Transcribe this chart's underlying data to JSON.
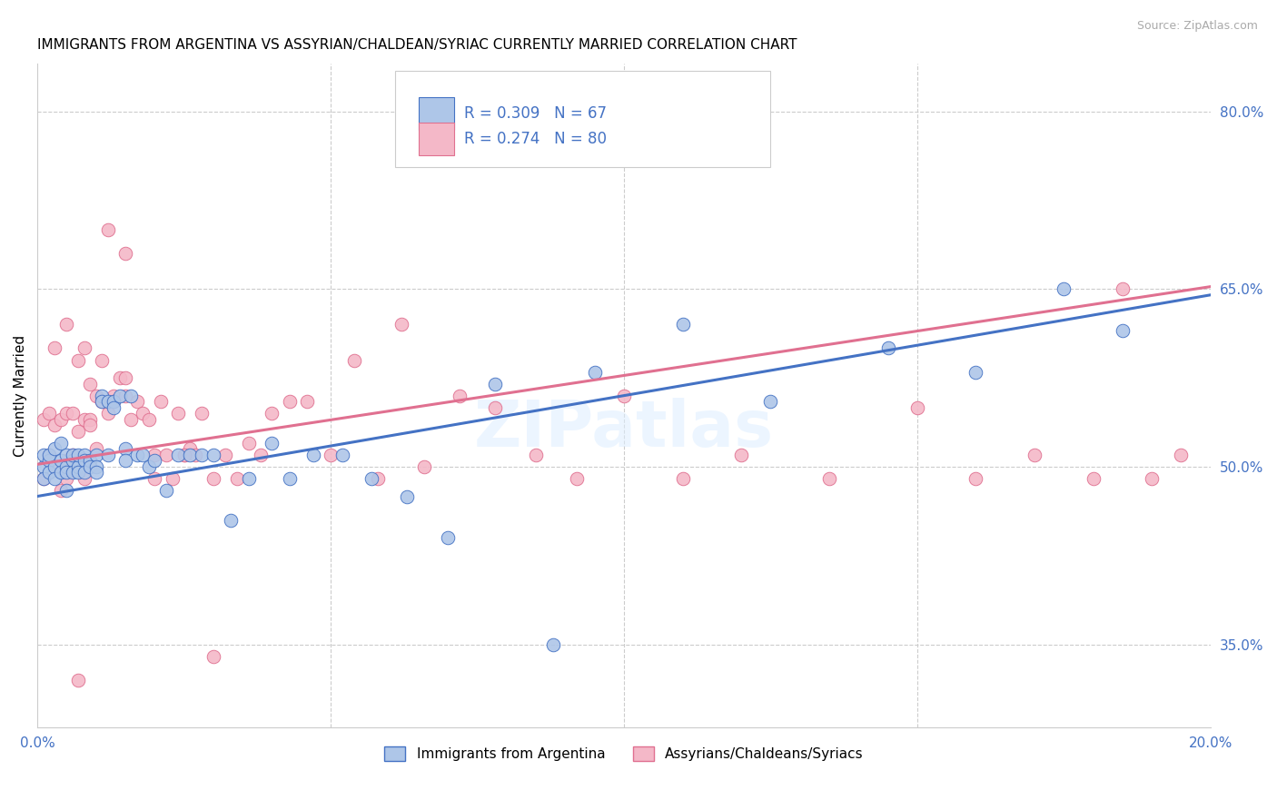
{
  "title": "IMMIGRANTS FROM ARGENTINA VS ASSYRIAN/CHALDEAN/SYRIAC CURRENTLY MARRIED CORRELATION CHART",
  "source": "Source: ZipAtlas.com",
  "ylabel": "Currently Married",
  "xlim": [
    0.0,
    0.2
  ],
  "ylim": [
    0.28,
    0.84
  ],
  "xticks": [
    0.0,
    0.05,
    0.1,
    0.15,
    0.2
  ],
  "xticklabels": [
    "0.0%",
    "",
    "",
    "",
    "20.0%"
  ],
  "yticks_right": [
    0.35,
    0.5,
    0.65,
    0.8
  ],
  "ytick_right_labels": [
    "35.0%",
    "50.0%",
    "65.0%",
    "80.0%"
  ],
  "legend_label1": "Immigrants from Argentina",
  "legend_label2": "Assyrians/Chaldeans/Syriacs",
  "R1": "0.309",
  "N1": "67",
  "R2": "0.274",
  "N2": "80",
  "color_blue": "#aec6e8",
  "color_pink": "#f4b8c8",
  "line_blue": "#4472c4",
  "line_pink": "#e07090",
  "scatter_size": 110,
  "blue_x": [
    0.001,
    0.001,
    0.001,
    0.002,
    0.002,
    0.002,
    0.003,
    0.003,
    0.003,
    0.004,
    0.004,
    0.004,
    0.005,
    0.005,
    0.005,
    0.005,
    0.006,
    0.006,
    0.006,
    0.007,
    0.007,
    0.007,
    0.008,
    0.008,
    0.008,
    0.009,
    0.009,
    0.01,
    0.01,
    0.01,
    0.011,
    0.011,
    0.012,
    0.012,
    0.013,
    0.013,
    0.014,
    0.015,
    0.015,
    0.016,
    0.017,
    0.018,
    0.019,
    0.02,
    0.022,
    0.024,
    0.026,
    0.028,
    0.03,
    0.033,
    0.036,
    0.04,
    0.043,
    0.047,
    0.052,
    0.057,
    0.063,
    0.07,
    0.078,
    0.088,
    0.095,
    0.11,
    0.125,
    0.145,
    0.16,
    0.175,
    0.185
  ],
  "blue_y": [
    0.5,
    0.51,
    0.49,
    0.505,
    0.51,
    0.495,
    0.5,
    0.515,
    0.49,
    0.505,
    0.52,
    0.495,
    0.5,
    0.51,
    0.495,
    0.48,
    0.505,
    0.51,
    0.495,
    0.5,
    0.51,
    0.495,
    0.51,
    0.505,
    0.495,
    0.505,
    0.5,
    0.51,
    0.5,
    0.495,
    0.56,
    0.555,
    0.555,
    0.51,
    0.555,
    0.55,
    0.56,
    0.515,
    0.505,
    0.56,
    0.51,
    0.51,
    0.5,
    0.505,
    0.48,
    0.51,
    0.51,
    0.51,
    0.51,
    0.455,
    0.49,
    0.52,
    0.49,
    0.51,
    0.51,
    0.49,
    0.475,
    0.44,
    0.57,
    0.35,
    0.58,
    0.62,
    0.555,
    0.6,
    0.58,
    0.65,
    0.615
  ],
  "pink_x": [
    0.001,
    0.001,
    0.002,
    0.002,
    0.003,
    0.003,
    0.003,
    0.004,
    0.004,
    0.005,
    0.005,
    0.005,
    0.006,
    0.006,
    0.007,
    0.007,
    0.008,
    0.008,
    0.008,
    0.009,
    0.009,
    0.009,
    0.01,
    0.01,
    0.011,
    0.011,
    0.012,
    0.013,
    0.013,
    0.014,
    0.015,
    0.015,
    0.016,
    0.017,
    0.018,
    0.019,
    0.02,
    0.021,
    0.022,
    0.023,
    0.024,
    0.025,
    0.026,
    0.027,
    0.028,
    0.03,
    0.032,
    0.034,
    0.036,
    0.038,
    0.04,
    0.043,
    0.046,
    0.05,
    0.054,
    0.058,
    0.062,
    0.066,
    0.072,
    0.078,
    0.085,
    0.092,
    0.1,
    0.11,
    0.12,
    0.135,
    0.15,
    0.16,
    0.17,
    0.18,
    0.185,
    0.19,
    0.195,
    0.025,
    0.03,
    0.012,
    0.015,
    0.02,
    0.007,
    0.005
  ],
  "pink_y": [
    0.49,
    0.54,
    0.51,
    0.545,
    0.5,
    0.535,
    0.6,
    0.48,
    0.54,
    0.505,
    0.545,
    0.62,
    0.545,
    0.51,
    0.53,
    0.59,
    0.49,
    0.54,
    0.6,
    0.54,
    0.535,
    0.57,
    0.56,
    0.515,
    0.555,
    0.59,
    0.545,
    0.56,
    0.555,
    0.575,
    0.56,
    0.575,
    0.54,
    0.555,
    0.545,
    0.54,
    0.51,
    0.555,
    0.51,
    0.49,
    0.545,
    0.51,
    0.515,
    0.51,
    0.545,
    0.49,
    0.51,
    0.49,
    0.52,
    0.51,
    0.545,
    0.555,
    0.555,
    0.51,
    0.59,
    0.49,
    0.62,
    0.5,
    0.56,
    0.55,
    0.51,
    0.49,
    0.56,
    0.49,
    0.51,
    0.49,
    0.55,
    0.49,
    0.51,
    0.49,
    0.65,
    0.49,
    0.51,
    0.51,
    0.34,
    0.7,
    0.68,
    0.49,
    0.32,
    0.49
  ]
}
